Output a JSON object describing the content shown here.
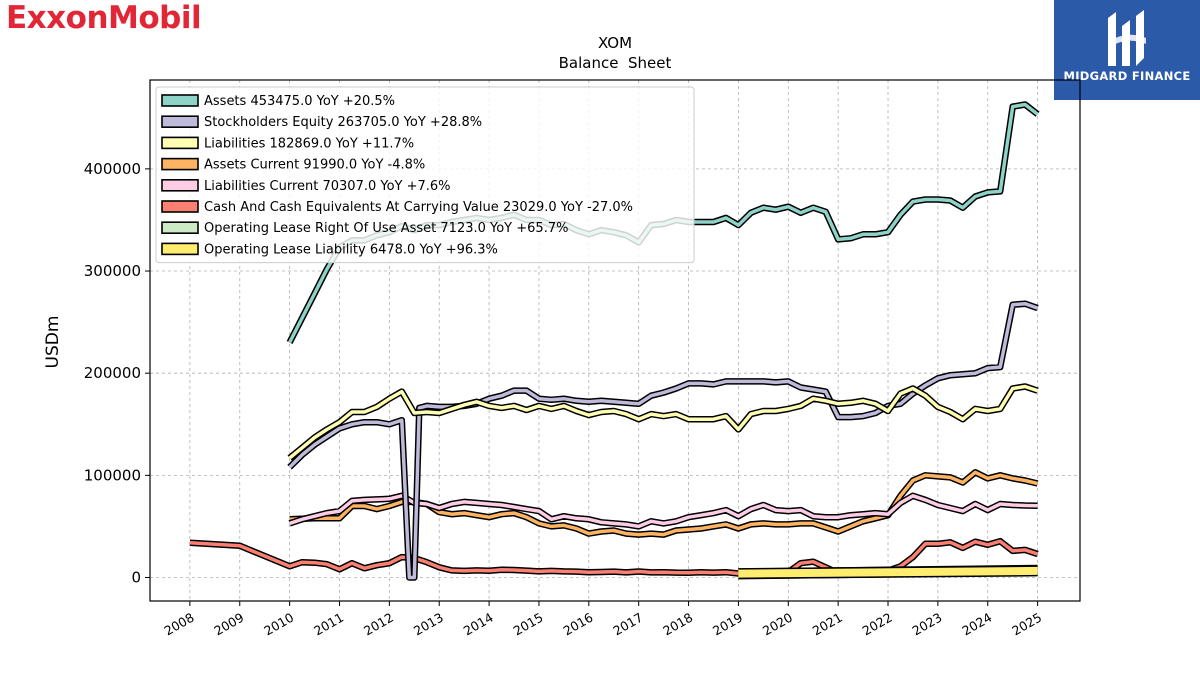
{
  "branding": {
    "left_logo": "ExxonMobil",
    "right_logo": "MIDGARD FINANCE",
    "accent": "#e32636",
    "right_bg": "#2b5aa8"
  },
  "chart_data": {
    "type": "line",
    "title": "XOM",
    "subtitle": "Balance  Sheet",
    "ylabel": "USDm",
    "xlabel": "",
    "xlim": [
      2007.2,
      2025.85
    ],
    "ylim": [
      -23000,
      487000
    ],
    "yticks": [
      0,
      100000,
      200000,
      300000,
      400000
    ],
    "ytick_labels": [
      "0",
      "100000",
      "200000",
      "300000",
      "400000"
    ],
    "xticks": [
      2008,
      2009,
      2010,
      2011,
      2012,
      2013,
      2014,
      2015,
      2016,
      2017,
      2018,
      2019,
      2020,
      2021,
      2022,
      2023,
      2024,
      2025
    ],
    "xtick_labels": [
      "2008",
      "2009",
      "2010",
      "2011",
      "2012",
      "2013",
      "2014",
      "2015",
      "2016",
      "2017",
      "2018",
      "2019",
      "2020",
      "2021",
      "2022",
      "2023",
      "2024",
      "2025"
    ],
    "grid": true,
    "legend_position": "top-left",
    "series": [
      {
        "name": "Cash And Cash Equivalents At Carrying Value",
        "legend": "Cash And Cash Equivalents At Carrying Value  23029.0 YoY -27.0%",
        "color": "#fb8072",
        "x": [
          2008.0,
          2009.0,
          2010.0,
          2010.25,
          2010.5,
          2010.75,
          2011.0,
          2011.25,
          2011.5,
          2011.75,
          2012.0,
          2012.25,
          2012.5,
          2012.75,
          2013.0,
          2013.25,
          2013.5,
          2013.75,
          2014.0,
          2014.25,
          2014.5,
          2014.75,
          2015.0,
          2015.25,
          2015.5,
          2015.75,
          2016.0,
          2016.25,
          2016.5,
          2016.75,
          2017.0,
          2017.25,
          2017.5,
          2017.75,
          2018.0,
          2018.25,
          2018.5,
          2018.75,
          2019.0,
          2019.25,
          2019.5,
          2019.75,
          2020.0,
          2020.25,
          2020.5,
          2020.75,
          2021.0,
          2021.25,
          2021.5,
          2021.75,
          2022.0,
          2022.25,
          2022.5,
          2022.75,
          2023.0,
          2023.25,
          2023.5,
          2023.75,
          2024.0,
          2024.25,
          2024.5,
          2024.75,
          2025.0
        ],
        "y": [
          34000,
          31000,
          11000,
          15000,
          14500,
          13000,
          8000,
          14000,
          9000,
          12000,
          14000,
          20000,
          19000,
          15000,
          10000,
          7000,
          6500,
          7000,
          6700,
          7500,
          7300,
          6800,
          6000,
          6500,
          6000,
          5800,
          5200,
          5400,
          5800,
          5000,
          5900,
          5000,
          5200,
          4800,
          4700,
          5100,
          4800,
          5200,
          3900,
          4400,
          5300,
          5100,
          5300,
          14000,
          15500,
          10000,
          4300,
          4200,
          3800,
          3000,
          6800,
          11000,
          20000,
          33000,
          33000,
          34500,
          29000,
          35000,
          32000,
          35500,
          26000,
          27000,
          23029
        ]
      },
      {
        "name": "Assets Current",
        "legend": "Assets Current  91990.0 YoY -4.8%",
        "color": "#fdb462",
        "x": [
          2010.0,
          2010.25,
          2010.5,
          2010.75,
          2011.0,
          2011.25,
          2011.5,
          2011.75,
          2012.0,
          2012.25,
          2012.5,
          2012.75,
          2013.0,
          2013.25,
          2013.5,
          2013.75,
          2014.0,
          2014.25,
          2014.5,
          2014.75,
          2015.0,
          2015.25,
          2015.5,
          2015.75,
          2016.0,
          2016.25,
          2016.5,
          2016.75,
          2017.0,
          2017.25,
          2017.5,
          2017.75,
          2018.0,
          2018.25,
          2018.5,
          2018.75,
          2019.0,
          2019.25,
          2019.5,
          2019.75,
          2020.0,
          2020.25,
          2020.5,
          2020.75,
          2021.0,
          2021.25,
          2021.5,
          2021.75,
          2022.0,
          2022.25,
          2022.5,
          2022.75,
          2023.0,
          2023.25,
          2023.5,
          2023.75,
          2024.0,
          2024.25,
          2024.5,
          2024.75,
          2025.0
        ],
        "y": [
          57000,
          57500,
          58000,
          58000,
          58000,
          70000,
          70000,
          67000,
          70000,
          74000,
          74000,
          72000,
          64000,
          62000,
          63000,
          61000,
          59000,
          62000,
          63000,
          59000,
          53000,
          50000,
          51000,
          48000,
          43000,
          45000,
          46000,
          43000,
          42000,
          43000,
          42000,
          46000,
          47000,
          48000,
          50000,
          52000,
          48000,
          52000,
          53000,
          52000,
          52000,
          53000,
          53000,
          49000,
          45000,
          50000,
          55000,
          58000,
          61000,
          80000,
          95000,
          100000,
          99000,
          98000,
          93000,
          103000,
          97000,
          100000,
          97000,
          95000,
          91990
        ]
      },
      {
        "name": "Liabilities Current",
        "legend": "Liabilities Current  70307.0 YoY +7.6%",
        "color": "#fccde5",
        "x": [
          2010.0,
          2010.25,
          2010.5,
          2010.75,
          2011.0,
          2011.25,
          2011.5,
          2011.75,
          2012.0,
          2012.25,
          2012.5,
          2012.75,
          2013.0,
          2013.25,
          2013.5,
          2013.75,
          2014.0,
          2014.25,
          2014.5,
          2014.75,
          2015.0,
          2015.25,
          2015.5,
          2015.75,
          2016.0,
          2016.25,
          2016.5,
          2016.75,
          2017.0,
          2017.25,
          2017.5,
          2017.75,
          2018.0,
          2018.25,
          2018.5,
          2018.75,
          2019.0,
          2019.25,
          2019.5,
          2019.75,
          2020.0,
          2020.25,
          2020.5,
          2020.75,
          2021.0,
          2021.25,
          2021.5,
          2021.75,
          2022.0,
          2022.25,
          2022.5,
          2022.75,
          2023.0,
          2023.25,
          2023.5,
          2023.75,
          2024.0,
          2024.25,
          2024.5,
          2024.75,
          2025.0
        ],
        "y": [
          53000,
          57000,
          60000,
          63000,
          65000,
          75000,
          76000,
          76500,
          77000,
          80000,
          73000,
          72000,
          68000,
          72000,
          74000,
          73000,
          72000,
          71000,
          69000,
          67000,
          65000,
          57000,
          60000,
          58000,
          57000,
          54000,
          53000,
          52000,
          50000,
          55000,
          53000,
          55000,
          59000,
          61000,
          63000,
          66000,
          60000,
          67000,
          71000,
          66000,
          65000,
          66000,
          60000,
          59000,
          59000,
          61000,
          62000,
          63000,
          62000,
          73000,
          80000,
          76000,
          71000,
          68000,
          65000,
          72000,
          66000,
          72000,
          71000,
          70500,
          70307
        ]
      },
      {
        "name": "Operating Lease Right Of Use Asset",
        "legend": "Operating Lease Right Of Use Asset  7123.0 YoY +65.7%",
        "color": "#ccebc5",
        "x": [
          2019.0,
          2025.0
        ],
        "y": [
          3500,
          7123
        ]
      },
      {
        "name": "Operating Lease Liability",
        "legend": "Operating Lease Liability  6478.0 YoY +96.3%",
        "color": "#ffed6f",
        "x": [
          2019.0,
          2025.0
        ],
        "y": [
          3800,
          6478
        ]
      },
      {
        "name": "Stockholders Equity",
        "legend": "Stockholders Equity  263705.0 YoY +28.8%",
        "color": "#bebada",
        "x": [
          2010.0,
          2010.25,
          2010.5,
          2010.75,
          2011.0,
          2011.25,
          2011.5,
          2011.75,
          2012.0,
          2012.25,
          2012.4,
          2012.5,
          2012.6,
          2012.75,
          2013.0,
          2013.25,
          2013.5,
          2013.75,
          2014.0,
          2014.25,
          2014.5,
          2014.75,
          2015.0,
          2015.25,
          2015.5,
          2015.75,
          2016.0,
          2016.25,
          2016.5,
          2016.75,
          2017.0,
          2017.25,
          2017.5,
          2017.75,
          2018.0,
          2018.25,
          2018.5,
          2018.75,
          2019.0,
          2019.25,
          2019.5,
          2019.75,
          2020.0,
          2020.25,
          2020.5,
          2020.75,
          2021.0,
          2021.25,
          2021.5,
          2021.75,
          2022.0,
          2022.25,
          2022.5,
          2022.75,
          2023.0,
          2023.25,
          2023.5,
          2023.75,
          2024.0,
          2024.25,
          2024.5,
          2024.75,
          2025.0
        ],
        "y": [
          108000,
          120000,
          130000,
          138000,
          146000,
          150000,
          152000,
          152000,
          150000,
          154000,
          0,
          0,
          166000,
          168000,
          167000,
          167000,
          168000,
          170000,
          175000,
          178000,
          183000,
          183000,
          175000,
          174000,
          175000,
          173000,
          172000,
          173000,
          172000,
          171000,
          170000,
          178000,
          181000,
          185000,
          190000,
          190000,
          189000,
          192000,
          192000,
          192000,
          192000,
          191000,
          192000,
          186000,
          184000,
          182000,
          157000,
          157000,
          158000,
          161000,
          168000,
          170000,
          180000,
          188000,
          195000,
          198000,
          199000,
          200000,
          205000,
          206000,
          267000,
          268000,
          263705
        ]
      },
      {
        "name": "Liabilities",
        "legend": "Liabilities  182869.0 YoY +11.7%",
        "color": "#ffffb3",
        "x": [
          2010.0,
          2010.25,
          2010.5,
          2010.75,
          2011.0,
          2011.25,
          2011.5,
          2011.75,
          2012.0,
          2012.25,
          2012.5,
          2012.75,
          2013.0,
          2013.25,
          2013.5,
          2013.75,
          2014.0,
          2014.25,
          2014.5,
          2014.75,
          2015.0,
          2015.25,
          2015.5,
          2015.75,
          2016.0,
          2016.25,
          2016.5,
          2016.75,
          2017.0,
          2017.25,
          2017.5,
          2017.75,
          2018.0,
          2018.25,
          2018.5,
          2018.75,
          2019.0,
          2019.25,
          2019.5,
          2019.75,
          2020.0,
          2020.25,
          2020.5,
          2020.75,
          2021.0,
          2021.25,
          2021.5,
          2021.75,
          2022.0,
          2022.25,
          2022.5,
          2022.75,
          2023.0,
          2023.25,
          2023.5,
          2023.75,
          2024.0,
          2024.25,
          2024.5,
          2024.75,
          2025.0
        ],
        "y": [
          117000,
          127000,
          137000,
          145000,
          152000,
          162000,
          162000,
          167000,
          175000,
          182000,
          161000,
          162000,
          161000,
          165000,
          169000,
          172000,
          168000,
          166000,
          168000,
          164000,
          168000,
          165000,
          168000,
          163000,
          159000,
          162000,
          163000,
          160000,
          155000,
          160000,
          158000,
          160000,
          155000,
          155000,
          155000,
          158000,
          145000,
          160000,
          163000,
          163000,
          165000,
          168000,
          175000,
          173000,
          170000,
          171000,
          173000,
          170000,
          163000,
          180000,
          185000,
          178000,
          167000,
          162000,
          155000,
          165000,
          163000,
          165000,
          185000,
          187000,
          182869
        ]
      },
      {
        "name": "Assets",
        "legend": "Assets  453475.0 YoY +20.5%",
        "color": "#8dd3c7",
        "x": [
          2010.0,
          2010.25,
          2010.5,
          2010.75,
          2011.0,
          2011.25,
          2011.5,
          2011.75,
          2012.0,
          2012.25,
          2012.5,
          2012.75,
          2013.0,
          2013.25,
          2013.5,
          2013.75,
          2014.0,
          2014.25,
          2014.5,
          2014.75,
          2015.0,
          2015.25,
          2015.5,
          2015.75,
          2016.0,
          2016.25,
          2016.5,
          2016.75,
          2017.0,
          2017.25,
          2017.5,
          2017.75,
          2018.0,
          2018.25,
          2018.5,
          2018.75,
          2019.0,
          2019.25,
          2019.5,
          2019.75,
          2020.0,
          2020.25,
          2020.5,
          2020.75,
          2021.0,
          2021.25,
          2021.5,
          2021.75,
          2022.0,
          2022.25,
          2022.5,
          2022.75,
          2023.0,
          2023.25,
          2023.5,
          2023.75,
          2024.0,
          2024.25,
          2024.5,
          2024.75,
          2025.0
        ],
        "y": [
          230000,
          254000,
          278000,
          302000,
          323000,
          330000,
          330000,
          335000,
          338000,
          344000,
          340000,
          345000,
          345000,
          348000,
          350000,
          352000,
          350000,
          352000,
          355000,
          350000,
          350000,
          345000,
          346000,
          340000,
          336000,
          340000,
          338000,
          335000,
          328000,
          345000,
          346000,
          350000,
          348000,
          348000,
          348000,
          352000,
          345000,
          357000,
          362000,
          360000,
          363000,
          357000,
          362000,
          358000,
          331000,
          332000,
          336000,
          336000,
          338000,
          355000,
          368000,
          370000,
          370000,
          369000,
          362000,
          373000,
          377000,
          378000,
          461000,
          463000,
          453475
        ]
      }
    ]
  }
}
